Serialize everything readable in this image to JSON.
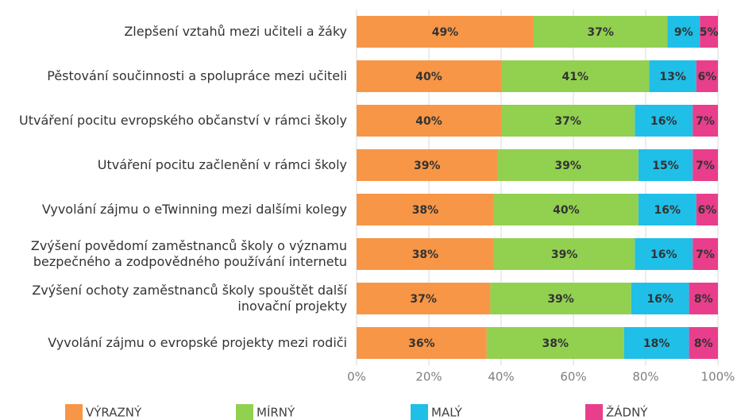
{
  "chart_data": {
    "type": "stacked-bar-horizontal",
    "categories": [
      "Zlepšení vztahů mezi učiteli a žáky",
      "Pěstování součinnosti a spolupráce mezi učiteli",
      "Utváření pocitu evropského občanství v rámci školy",
      "Utváření pocitu začlenění v rámci školy",
      "Vyvolání zájmu o eTwinning mezi dalšími kolegy",
      "Zvýšení povědomí zaměstnanců školy o významu bezpečného a zodpovědného používání internetu",
      "Zvýšení ochoty zaměstnanců školy spouštět další inovační projekty",
      "Vyvolání zájmu o evropské projekty mezi rodiči"
    ],
    "series": [
      {
        "name": "VÝRAZNÝ",
        "color": "#f79646",
        "values": [
          49,
          40,
          40,
          39,
          38,
          38,
          37,
          36
        ],
        "value_labels": [
          "49%",
          "40%",
          "40%",
          "39%",
          "38%",
          "38%",
          "37%",
          "36%"
        ]
      },
      {
        "name": "MÍRNÝ",
        "color": "#92d050",
        "values": [
          37,
          41,
          37,
          39,
          40,
          39,
          39,
          38
        ],
        "value_labels": [
          "37%",
          "41%",
          "37%",
          "39%",
          "40%",
          "39%",
          "39%",
          "38%"
        ]
      },
      {
        "name": "MALÝ",
        "color": "#1fbfe8",
        "values": [
          9,
          13,
          16,
          15,
          16,
          16,
          16,
          18
        ],
        "value_labels": [
          "9%",
          "13%",
          "16%",
          "15%",
          "16%",
          "16%",
          "16%",
          "18%"
        ]
      },
      {
        "name": "ŽÁDNÝ",
        "color": "#e83e8c",
        "values": [
          5,
          6,
          7,
          7,
          6,
          7,
          8,
          8
        ],
        "value_labels": [
          "5%",
          "6%",
          "7%",
          "7%",
          "6%",
          "7%",
          "8%",
          "8%"
        ]
      }
    ],
    "xlim": [
      0,
      100
    ],
    "xticks": [
      {
        "value": 0,
        "label": "0%"
      },
      {
        "value": 20,
        "label": "20%"
      },
      {
        "value": 40,
        "label": "40%"
      },
      {
        "value": 60,
        "label": "60%"
      },
      {
        "value": 80,
        "label": "80%"
      },
      {
        "value": 100,
        "label": "100%"
      }
    ],
    "grid": true,
    "legend": "bottom"
  }
}
